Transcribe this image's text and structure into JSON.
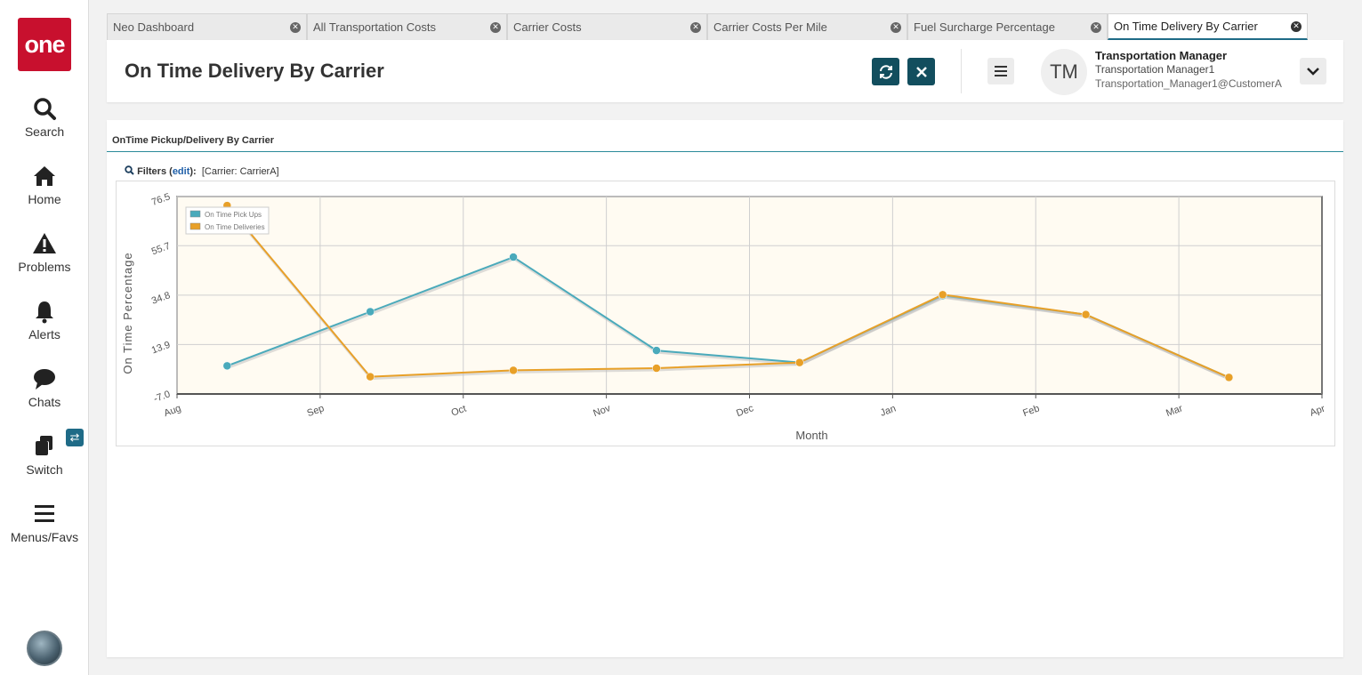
{
  "sidebar": {
    "logo": "one",
    "items": [
      {
        "label": "Search",
        "icon": "search-icon"
      },
      {
        "label": "Home",
        "icon": "home-icon"
      },
      {
        "label": "Problems",
        "icon": "warning-icon"
      },
      {
        "label": "Alerts",
        "icon": "bell-icon"
      },
      {
        "label": "Chats",
        "icon": "chat-icon"
      },
      {
        "label": "Switch",
        "icon": "switch-icon"
      },
      {
        "label": "Menus/Favs",
        "icon": "hamburger-icon"
      }
    ],
    "switch_badge": "⇄"
  },
  "tabs": [
    {
      "label": "Neo Dashboard"
    },
    {
      "label": "All Transportation Costs"
    },
    {
      "label": "Carrier Costs"
    },
    {
      "label": "Carrier Costs Per Mile"
    },
    {
      "label": "Fuel Surcharge Percentage"
    },
    {
      "label": "On Time Delivery By Carrier",
      "active": true
    }
  ],
  "header": {
    "title": "On Time Delivery By Carrier",
    "refresh_icon": "refresh-icon",
    "close_icon": "close-icon"
  },
  "user": {
    "initials": "TM",
    "name": "Transportation Manager",
    "role": "Transportation Manager1",
    "email": "Transportation_Manager1@CustomerA"
  },
  "panel": {
    "title": "OnTime Pickup/Delivery By Carrier",
    "filters_label": "Filters",
    "filters_edit": "edit",
    "filters_value": "[Carrier: CarrierA]"
  },
  "colors": {
    "brand": "#c8102e",
    "accent": "#124e5e",
    "pickups": "#4aaabb",
    "deliveries": "#e8a028",
    "plot_bg": "#fffbf2"
  },
  "chart_data": {
    "type": "line",
    "title": "",
    "xlabel": "Month",
    "ylabel": "On Time Percentage",
    "x_ticks": [
      "Aug",
      "Sep",
      "Oct",
      "Nov",
      "Dec",
      "Jan",
      "Feb",
      "Mar",
      "Apr"
    ],
    "y_ticks": [
      "76.5",
      "55.7",
      "34.8",
      "13.9",
      "-7.0"
    ],
    "ylim": [
      -7.0,
      76.5
    ],
    "grid": true,
    "legend": "top-left",
    "x": [
      "Aug",
      "Sep",
      "Oct",
      "Nov",
      "Dec",
      "Jan",
      "Feb",
      "Mar"
    ],
    "series": [
      {
        "name": "On Time Pick Ups",
        "color": "#4aaabb",
        "values": [
          4.9,
          27.8,
          50.9,
          11.4,
          6.3,
          34.6,
          26.6,
          0.0
        ]
      },
      {
        "name": "On Time Deliveries",
        "color": "#e8a028",
        "values": [
          72.7,
          0.3,
          3.0,
          3.9,
          6.3,
          35.0,
          26.6,
          0.0
        ]
      }
    ]
  }
}
